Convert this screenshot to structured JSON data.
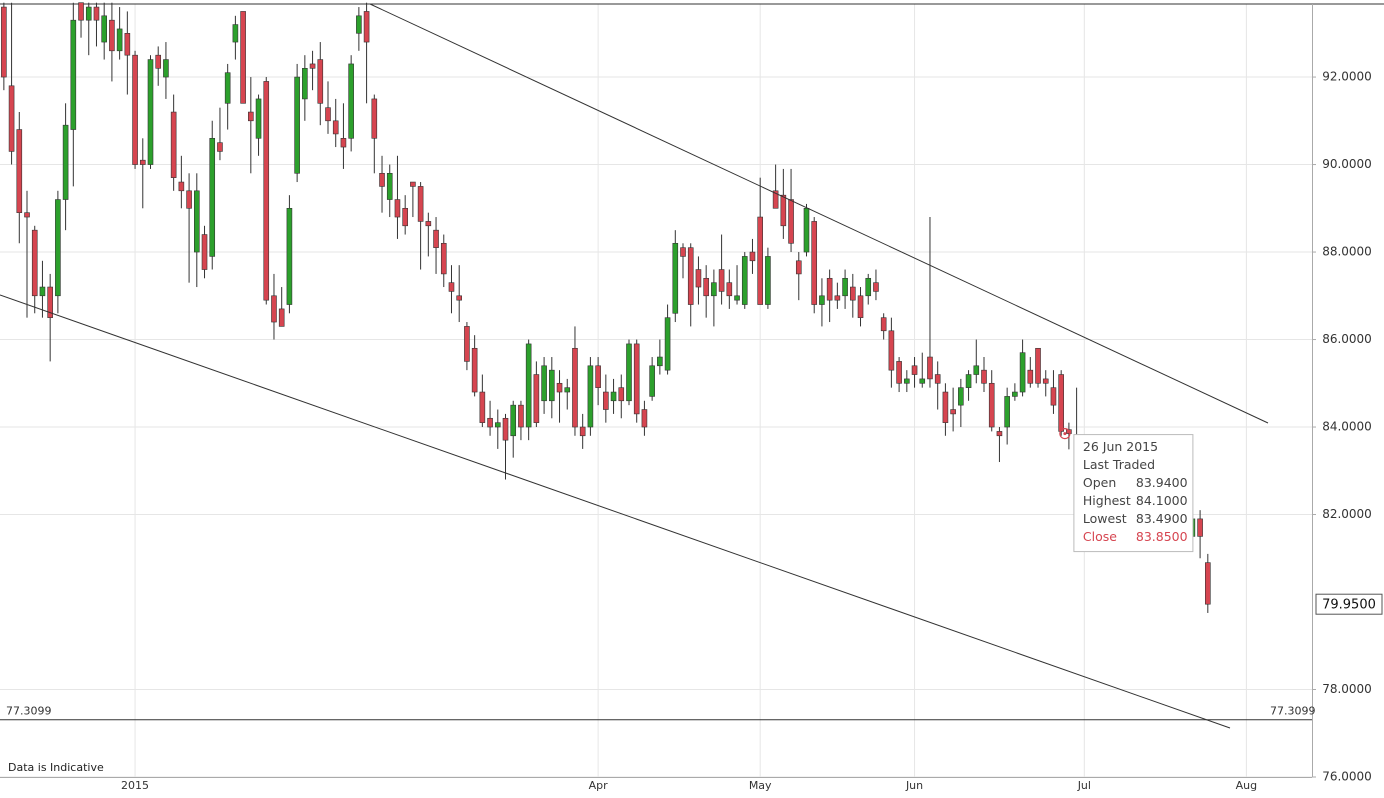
{
  "chart_data": {
    "type": "candlestick",
    "categories": [
      null,
      null,
      null,
      null,
      null,
      null,
      null,
      null,
      null,
      null,
      null,
      null,
      null,
      null,
      null,
      null,
      null,
      "2015",
      null,
      null,
      null,
      null,
      null,
      null,
      null,
      null,
      null,
      null,
      null,
      null,
      null,
      null,
      null,
      null,
      null,
      null,
      null,
      null,
      null,
      null,
      null,
      null,
      null,
      null,
      null,
      null,
      null,
      null,
      null,
      null,
      null,
      null,
      null,
      null,
      null,
      null,
      null,
      null,
      null,
      null,
      null,
      null,
      null,
      null,
      null,
      null,
      null,
      null,
      null,
      null,
      null,
      null,
      null,
      null,
      null,
      null,
      null,
      "Apr",
      null,
      null,
      null,
      null,
      null,
      null,
      null,
      null,
      null,
      null,
      null,
      null,
      null,
      null,
      null,
      null,
      null,
      null,
      null,
      null,
      "May",
      null,
      null,
      null,
      null,
      null,
      null,
      null,
      null,
      null,
      null,
      null,
      null,
      null,
      null,
      null,
      null,
      null,
      null,
      null,
      "Jun",
      null,
      null,
      null,
      null,
      null,
      null,
      null,
      null,
      null,
      null,
      null,
      null,
      null,
      null,
      null,
      null,
      null,
      null,
      null,
      null,
      null,
      "Jul",
      null,
      null,
      null,
      null,
      null,
      null,
      null,
      null,
      null,
      null,
      null,
      null,
      null,
      null,
      null,
      null,
      null,
      null,
      null,
      null,
      "Aug",
      null,
      null,
      null,
      null,
      null,
      null,
      null,
      null
    ],
    "open": [
      93.6,
      91.8,
      90.8,
      88.9,
      88.5,
      87.0,
      87.2,
      87.0,
      89.2,
      90.8,
      93.7,
      93.3,
      93.6,
      92.8,
      93.3,
      92.6,
      93.0,
      92.5,
      90.1,
      90.0,
      92.5,
      92.0,
      91.2,
      89.6,
      89.4,
      88.0,
      88.4,
      87.9,
      90.5,
      91.4,
      92.8,
      93.5,
      91.2,
      90.6,
      91.9,
      87.0,
      86.7,
      86.8,
      89.8,
      91.5,
      92.3,
      92.4,
      91.3,
      91.0,
      90.6,
      90.6,
      93.0,
      93.5,
      91.5,
      89.8,
      89.2,
      89.2,
      89.0,
      89.6,
      89.5,
      88.7,
      88.5,
      88.2,
      87.3,
      87.0,
      86.3,
      85.8,
      84.8,
      84.2,
      84.0,
      84.2,
      83.8,
      84.5,
      84.0,
      85.2,
      84.6,
      84.6,
      85.0,
      84.8,
      85.8,
      84.0,
      84.0,
      85.4,
      84.8,
      84.6,
      84.9,
      84.6,
      85.9,
      84.4,
      84.7,
      85.4,
      85.3,
      86.6,
      88.1,
      88.1,
      87.6,
      87.4,
      87.0,
      87.6,
      87.3,
      86.9,
      86.8,
      88.0,
      88.8,
      86.8,
      89.4,
      89.3,
      89.2,
      87.8,
      88.0,
      88.7,
      86.8,
      87.4,
      87.0,
      87.0,
      87.2,
      87.0,
      87.0,
      87.3,
      86.5,
      86.2,
      85.5,
      85.0,
      85.4,
      85.0,
      85.6,
      85.2,
      84.8,
      84.4,
      84.5,
      84.9,
      85.2,
      85.3,
      85.0,
      83.9,
      84.0,
      84.7,
      84.8,
      85.3,
      85.8,
      85.1,
      84.9,
      85.2,
      83.94,
      83.4,
      null,
      null,
      null,
      null,
      null,
      null,
      null,
      null,
      null,
      null,
      null,
      null,
      null,
      null,
      81.5,
      81.9,
      80.9,
      null,
      null,
      null,
      null,
      null,
      null,
      null,
      null,
      null,
      null,
      null,
      null,
      null
    ],
    "high": [
      93.7,
      93.7,
      91.2,
      89.4,
      88.6,
      87.8,
      87.5,
      89.4,
      91.4,
      93.7,
      93.7,
      93.7,
      93.7,
      93.7,
      93.7,
      93.6,
      93.5,
      92.6,
      90.6,
      92.5,
      92.7,
      92.8,
      91.6,
      90.2,
      89.8,
      89.8,
      88.6,
      91.0,
      91.3,
      92.3,
      93.4,
      93.5,
      92.0,
      91.6,
      92.0,
      87.5,
      87.2,
      89.3,
      92.3,
      92.5,
      92.6,
      92.8,
      91.9,
      91.5,
      91.4,
      92.5,
      93.6,
      93.7,
      91.6,
      90.2,
      90.0,
      90.2,
      89.3,
      89.6,
      89.6,
      88.9,
      88.8,
      88.4,
      87.7,
      87.7,
      86.4,
      86.1,
      85.2,
      84.6,
      84.4,
      84.3,
      84.6,
      84.6,
      86.0,
      85.5,
      85.6,
      85.6,
      85.3,
      85.1,
      86.3,
      84.3,
      85.6,
      85.6,
      85.2,
      85.1,
      85.2,
      86.0,
      86.0,
      84.6,
      85.6,
      86.0,
      86.8,
      88.5,
      88.2,
      88.2,
      87.9,
      87.7,
      87.6,
      88.4,
      87.6,
      87.7,
      88.0,
      88.3,
      89.7,
      88.1,
      90.0,
      89.9,
      89.9,
      88.0,
      89.1,
      88.8,
      87.4,
      87.6,
      87.3,
      87.6,
      87.5,
      87.2,
      87.5,
      87.6,
      86.6,
      86.5,
      85.6,
      85.3,
      85.6,
      85.7,
      88.8,
      85.5,
      85.0,
      84.9,
      85.1,
      85.3,
      86.0,
      85.6,
      85.3,
      84.0,
      84.9,
      85.0,
      86.0,
      85.6,
      85.8,
      85.3,
      85.3,
      85.3,
      84.1,
      84.9,
      null,
      null,
      null,
      null,
      null,
      null,
      null,
      null,
      null,
      null,
      null,
      null,
      null,
      null,
      82.5,
      82.1,
      81.1,
      null,
      null,
      null,
      null,
      null,
      null,
      null,
      null,
      null,
      null,
      null,
      null,
      null
    ],
    "low": [
      91.7,
      90.0,
      88.2,
      86.5,
      86.6,
      86.5,
      85.5,
      86.6,
      88.5,
      89.5,
      92.9,
      92.5,
      92.7,
      92.4,
      91.9,
      92.4,
      91.6,
      89.9,
      89.0,
      89.9,
      91.8,
      91.5,
      89.4,
      89.0,
      87.3,
      87.2,
      87.4,
      87.6,
      90.1,
      90.8,
      92.4,
      91.4,
      89.8,
      90.2,
      86.8,
      86.0,
      86.3,
      86.6,
      89.6,
      91.0,
      91.7,
      90.9,
      90.7,
      90.4,
      89.9,
      90.3,
      92.6,
      91.4,
      89.8,
      88.9,
      88.8,
      88.3,
      88.4,
      88.8,
      87.6,
      87.9,
      87.5,
      87.2,
      86.6,
      86.4,
      85.3,
      84.7,
      84.0,
      83.8,
      83.5,
      82.8,
      83.3,
      83.7,
      83.7,
      84.0,
      84.3,
      84.2,
      84.1,
      84.4,
      83.8,
      83.5,
      83.8,
      84.5,
      84.1,
      84.3,
      84.2,
      84.5,
      84.1,
      83.8,
      84.6,
      85.2,
      85.2,
      86.4,
      87.4,
      86.3,
      86.8,
      86.5,
      86.3,
      86.8,
      86.7,
      86.8,
      86.7,
      87.5,
      86.8,
      86.7,
      89.0,
      88.3,
      88.0,
      86.9,
      87.9,
      86.6,
      86.3,
      86.4,
      86.7,
      86.7,
      86.5,
      86.3,
      86.8,
      86.9,
      86.0,
      84.9,
      84.8,
      84.8,
      84.9,
      84.9,
      84.9,
      84.4,
      83.8,
      83.9,
      84.0,
      84.6,
      85.0,
      84.8,
      83.9,
      83.2,
      83.6,
      84.6,
      84.7,
      84.9,
      84.9,
      84.7,
      84.3,
      83.8,
      83.49,
      82.8,
      null,
      null,
      null,
      null,
      null,
      null,
      null,
      null,
      null,
      null,
      null,
      null,
      null,
      null,
      81.3,
      81.0,
      79.75,
      null,
      null,
      null,
      null,
      null,
      null,
      null,
      null,
      null,
      null,
      null,
      null,
      null
    ],
    "close": [
      92.0,
      90.3,
      88.9,
      88.8,
      87.0,
      87.2,
      86.5,
      89.2,
      90.9,
      93.3,
      93.3,
      93.6,
      93.3,
      93.4,
      92.6,
      93.1,
      92.5,
      90.0,
      90.0,
      92.4,
      92.2,
      92.4,
      89.7,
      89.4,
      89.0,
      89.4,
      87.6,
      90.6,
      90.3,
      92.1,
      93.2,
      91.4,
      91.0,
      91.5,
      86.9,
      86.4,
      86.3,
      89.0,
      92.0,
      92.2,
      92.2,
      91.4,
      91.0,
      90.7,
      90.4,
      92.3,
      93.4,
      92.8,
      90.6,
      89.5,
      89.8,
      88.8,
      88.6,
      89.5,
      88.7,
      88.6,
      88.1,
      87.5,
      87.1,
      86.9,
      85.5,
      84.8,
      84.1,
      84.0,
      84.1,
      83.7,
      84.5,
      84.0,
      85.9,
      84.1,
      85.4,
      85.3,
      84.8,
      84.9,
      84.0,
      83.8,
      85.4,
      84.9,
      84.4,
      84.8,
      84.6,
      85.9,
      84.3,
      84.0,
      85.4,
      85.6,
      86.5,
      88.2,
      87.9,
      86.8,
      87.2,
      87.0,
      87.3,
      87.1,
      87.0,
      87.0,
      87.9,
      87.8,
      86.8,
      87.9,
      89.0,
      88.6,
      88.2,
      87.5,
      89.0,
      86.8,
      87.0,
      86.9,
      86.9,
      87.4,
      86.9,
      86.5,
      87.4,
      87.1,
      86.2,
      85.3,
      85.0,
      85.1,
      85.2,
      85.1,
      85.1,
      85.0,
      84.1,
      84.3,
      84.9,
      85.2,
      85.4,
      85.0,
      84.0,
      83.8,
      84.7,
      84.8,
      85.7,
      85.0,
      85.0,
      85.0,
      84.5,
      83.9,
      83.85,
      82.9,
      null,
      null,
      null,
      null,
      null,
      null,
      null,
      null,
      null,
      null,
      null,
      null,
      null,
      null,
      81.9,
      81.5,
      79.95,
      null,
      null,
      null,
      null,
      null,
      null,
      null,
      null,
      null,
      null,
      null,
      null,
      null
    ],
    "up_color": "#2ca02c",
    "down_color": "#d64550",
    "ylim": [
      76,
      93.67
    ],
    "yticks": [
      {
        "value": 76,
        "label": "76.0000"
      },
      {
        "value": 78,
        "label": "78.0000"
      },
      {
        "value": 82,
        "label": "82.0000"
      },
      {
        "value": 84,
        "label": "84.0000"
      },
      {
        "value": 86,
        "label": "86.0000"
      },
      {
        "value": 88,
        "label": "88.0000"
      },
      {
        "value": 90,
        "label": "90.0000"
      },
      {
        "value": 92,
        "label": "92.0000"
      }
    ],
    "grid": true,
    "last_price": {
      "value": 79.95,
      "label": "79.9500"
    },
    "reference_line": 77.3099,
    "note": "Data is Indicative",
    "tooltip": {
      "index": 138,
      "date": "26 Jun 2015",
      "title": "Last Traded",
      "rows": [
        {
          "label": "Open",
          "value": "83.9400"
        },
        {
          "label": "Highest",
          "value": "84.1000"
        },
        {
          "label": "Lowest",
          "value": "83.4900"
        },
        {
          "label": "Close",
          "value": "83.8500"
        }
      ]
    }
  }
}
